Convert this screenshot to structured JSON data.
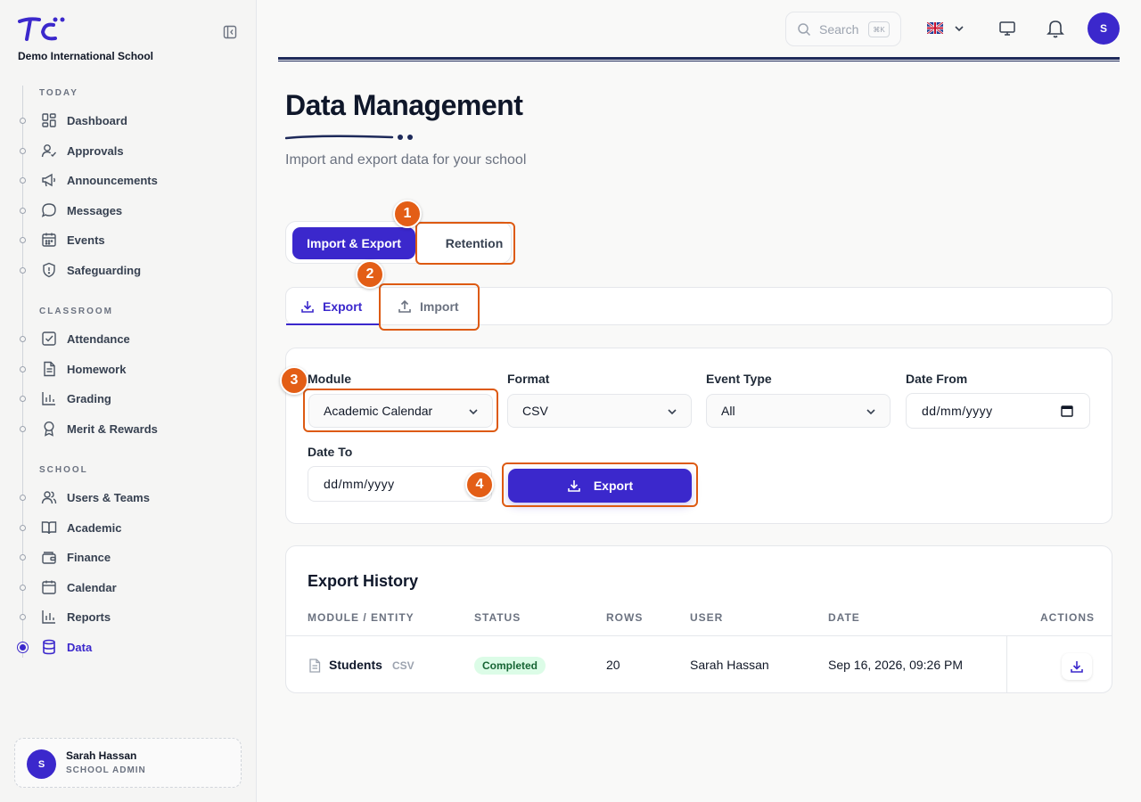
{
  "sidebar": {
    "school_name": "Demo International School",
    "sections": [
      {
        "label": "TODAY"
      },
      {
        "label": "CLASSROOM"
      },
      {
        "label": "SCHOOL"
      }
    ],
    "items": [
      {
        "label": "Dashboard",
        "icon": "grid-icon"
      },
      {
        "label": "Approvals",
        "icon": "user-check-icon"
      },
      {
        "label": "Announcements",
        "icon": "megaphone-icon"
      },
      {
        "label": "Messages",
        "icon": "chat-bubble-icon"
      },
      {
        "label": "Events",
        "icon": "calendar-grid-icon"
      },
      {
        "label": "Safeguarding",
        "icon": "shield-icon"
      },
      {
        "label": "Attendance",
        "icon": "checkbox-icon"
      },
      {
        "label": "Homework",
        "icon": "document-icon"
      },
      {
        "label": "Grading",
        "icon": "bar-chart-icon"
      },
      {
        "label": "Merit & Rewards",
        "icon": "award-icon"
      },
      {
        "label": "Users & Teams",
        "icon": "users-icon"
      },
      {
        "label": "Academic",
        "icon": "book-icon"
      },
      {
        "label": "Finance",
        "icon": "wallet-icon"
      },
      {
        "label": "Calendar",
        "icon": "calendar-icon"
      },
      {
        "label": "Reports",
        "icon": "bar-chart-icon"
      },
      {
        "label": "Data",
        "icon": "database-icon",
        "active": true
      }
    ],
    "user": {
      "initial": "S",
      "name": "Sarah Hassan",
      "role": "SCHOOL ADMIN"
    }
  },
  "topbar": {
    "search_placeholder": "Search",
    "search_shortcut": "⌘K",
    "language_flag": "uk-flag-icon",
    "avatar_initial": "S"
  },
  "page": {
    "title": "Data Management",
    "subtitle": "Import and export data for your school"
  },
  "tabs": {
    "primary": "Import & Export",
    "secondary": "Retention"
  },
  "subtabs": {
    "export": "Export",
    "import": "Import"
  },
  "form": {
    "module_label": "Module",
    "module_value": "Academic Calendar",
    "format_label": "Format",
    "format_value": "CSV",
    "event_type_label": "Event Type",
    "event_type_value": "All",
    "date_from_label": "Date From",
    "date_from_value": "dd/mm/yyyy",
    "date_to_label": "Date To",
    "date_to_value": "dd/mm/yyyy",
    "export_button": "Export"
  },
  "history": {
    "title": "Export History",
    "columns": [
      "MODULE / ENTITY",
      "STATUS",
      "ROWS",
      "USER",
      "DATE",
      "ACTIONS"
    ],
    "rows": [
      {
        "entity": "Students",
        "format": "CSV",
        "status": "Completed",
        "rows": "20",
        "user": "Sarah Hassan",
        "date": "Sep 16, 2026, 09:26 PM"
      }
    ]
  },
  "callouts": [
    "1",
    "2",
    "3",
    "4"
  ],
  "colors": {
    "brand": "#3b28cc",
    "callout": "#e35e16",
    "success_bg": "#dcfce7",
    "success_text": "#166534"
  }
}
